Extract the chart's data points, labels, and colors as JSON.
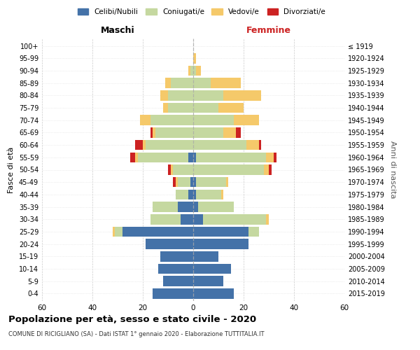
{
  "age_groups": [
    "0-4",
    "5-9",
    "10-14",
    "15-19",
    "20-24",
    "25-29",
    "30-34",
    "35-39",
    "40-44",
    "45-49",
    "50-54",
    "55-59",
    "60-64",
    "65-69",
    "70-74",
    "75-79",
    "80-84",
    "85-89",
    "90-94",
    "95-99",
    "100+"
  ],
  "birth_years": [
    "2015-2019",
    "2010-2014",
    "2005-2009",
    "2000-2004",
    "1995-1999",
    "1990-1994",
    "1985-1989",
    "1980-1984",
    "1975-1979",
    "1970-1974",
    "1965-1969",
    "1960-1964",
    "1955-1959",
    "1950-1954",
    "1945-1949",
    "1940-1944",
    "1935-1939",
    "1930-1934",
    "1925-1929",
    "1920-1924",
    "≤ 1919"
  ],
  "males": {
    "celibi": [
      16,
      12,
      14,
      13,
      19,
      28,
      5,
      6,
      2,
      1,
      0,
      2,
      0,
      0,
      0,
      0,
      0,
      0,
      0,
      0,
      0
    ],
    "coniugati": [
      0,
      0,
      0,
      0,
      0,
      3,
      12,
      10,
      5,
      5,
      8,
      20,
      19,
      15,
      17,
      10,
      10,
      9,
      1,
      0,
      0
    ],
    "vedovi": [
      0,
      0,
      0,
      0,
      0,
      1,
      0,
      0,
      0,
      1,
      1,
      1,
      1,
      1,
      4,
      2,
      3,
      2,
      1,
      0,
      0
    ],
    "divorziati": [
      0,
      0,
      0,
      0,
      0,
      0,
      0,
      0,
      0,
      1,
      1,
      2,
      3,
      1,
      0,
      0,
      0,
      0,
      0,
      0,
      0
    ]
  },
  "females": {
    "nubili": [
      16,
      12,
      15,
      10,
      22,
      22,
      4,
      2,
      1,
      1,
      0,
      1,
      0,
      0,
      0,
      0,
      0,
      0,
      0,
      0,
      0
    ],
    "coniugate": [
      0,
      0,
      0,
      0,
      0,
      4,
      25,
      14,
      10,
      12,
      28,
      28,
      21,
      12,
      16,
      10,
      12,
      7,
      1,
      0,
      0
    ],
    "vedove": [
      0,
      0,
      0,
      0,
      0,
      0,
      1,
      0,
      1,
      1,
      2,
      3,
      5,
      5,
      10,
      10,
      15,
      12,
      2,
      1,
      0
    ],
    "divorziate": [
      0,
      0,
      0,
      0,
      0,
      0,
      0,
      0,
      0,
      0,
      1,
      1,
      1,
      2,
      0,
      0,
      0,
      0,
      0,
      0,
      0
    ]
  },
  "colors": {
    "celibi": "#4472a8",
    "coniugati": "#c5d8a0",
    "vedovi": "#f5c96a",
    "divorziati": "#cc2222"
  },
  "xlim": 60,
  "title": "Popolazione per età, sesso e stato civile - 2020",
  "subtitle": "COMUNE DI RICIGLIANO (SA) - Dati ISTAT 1° gennaio 2020 - Elaborazione TUTTITALIA.IT",
  "ylabel_left": "Fasce di età",
  "ylabel_right": "Anni di nascita",
  "legend_labels": [
    "Celibi/Nubili",
    "Coniugati/e",
    "Vedovi/e",
    "Divorziati/e"
  ],
  "maschi_label": "Maschi",
  "femmine_label": "Femmine"
}
